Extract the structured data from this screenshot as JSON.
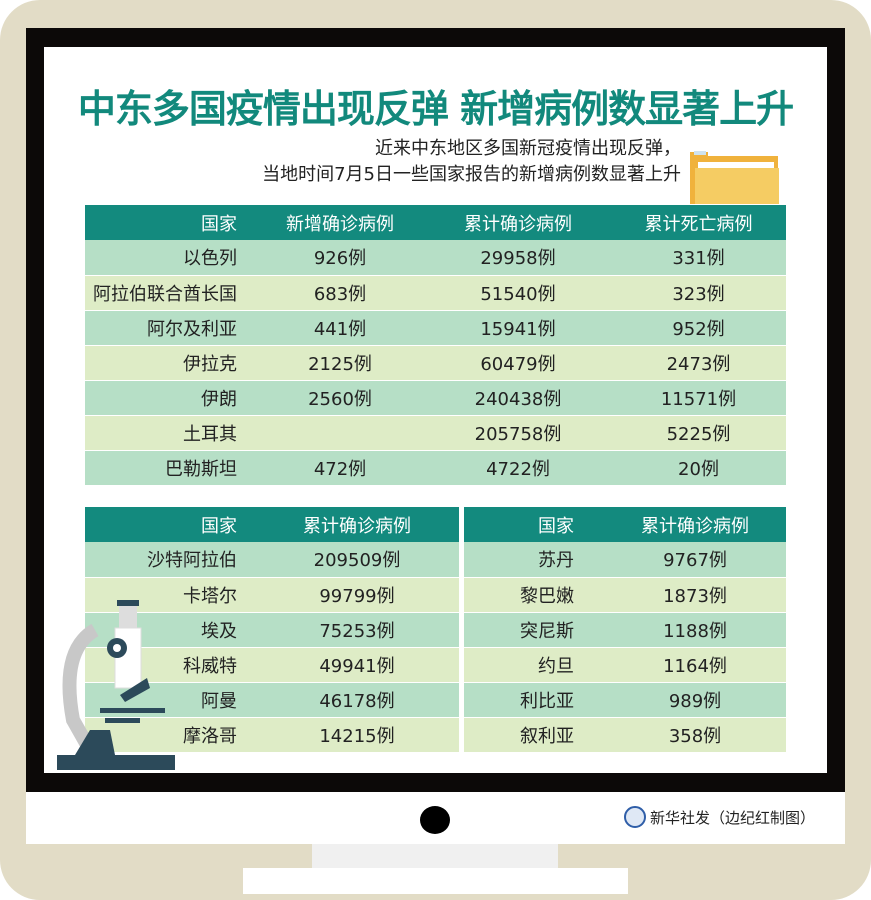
{
  "title": "中东多国疫情出现反弹 新增病例数显著上升",
  "subtitle": [
    "近来中东地区多国新冠疫情出现反弹，",
    "当地时间7月5日一些国家报告的新增病例数显著上升"
  ],
  "table1": {
    "headers": [
      "国家",
      "新增确诊病例",
      "累计确诊病例",
      "累计死亡病例"
    ],
    "rows": [
      [
        "以色列",
        "926例",
        "29958例",
        "331例"
      ],
      [
        "阿拉伯联合酋长国",
        "683例",
        "51540例",
        "323例"
      ],
      [
        "阿尔及利亚",
        "441例",
        "15941例",
        "952例"
      ],
      [
        "伊拉克",
        "2125例",
        "60479例",
        "2473例"
      ],
      [
        "伊朗",
        "2560例",
        "240438例",
        "11571例"
      ],
      [
        "土耳其",
        "",
        "205758例",
        "5225例"
      ],
      [
        "巴勒斯坦",
        "472例",
        "4722例",
        "20例"
      ]
    ]
  },
  "table2": {
    "headers": [
      "国家",
      "累计确诊病例"
    ],
    "rows": [
      [
        "沙特阿拉伯",
        "209509例"
      ],
      [
        "卡塔尔",
        "99799例"
      ],
      [
        "埃及",
        "75253例"
      ],
      [
        "科威特",
        "49941例"
      ],
      [
        "阿曼",
        "46178例"
      ],
      [
        "摩洛哥",
        "14215例"
      ]
    ]
  },
  "table3": {
    "headers": [
      "国家",
      "累计确诊病例"
    ],
    "rows": [
      [
        "苏丹",
        "9767例"
      ],
      [
        "黎巴嫩",
        "1873例"
      ],
      [
        "突尼斯",
        "1188例"
      ],
      [
        "约旦",
        "1164例"
      ],
      [
        "利比亚",
        "989例"
      ],
      [
        "叙利亚",
        "358例"
      ]
    ]
  },
  "credit": "新华社发（边纪红制图）",
  "colors": {
    "accent": "#138a7e",
    "row_a": "#b6dfc6",
    "row_b": "#deecc6",
    "frame": "#e2dcc6"
  }
}
